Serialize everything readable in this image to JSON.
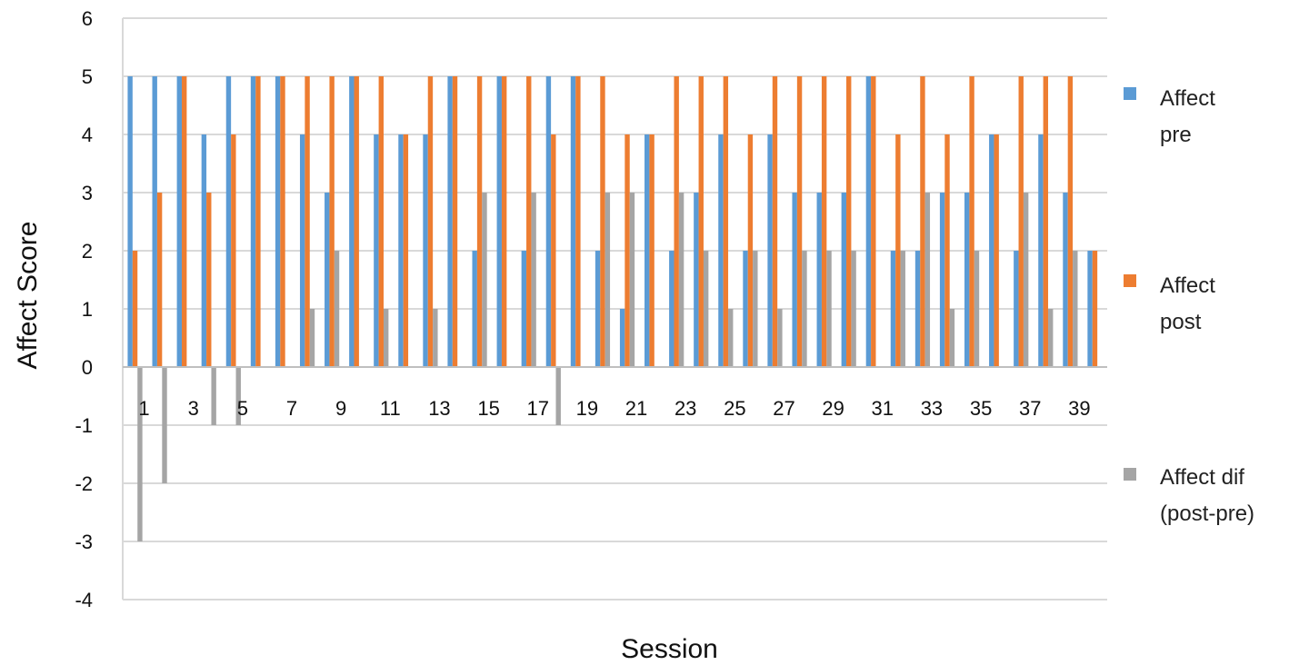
{
  "chart_data": {
    "type": "bar",
    "title": "",
    "xlabel": "Session",
    "ylabel": "Affect Score",
    "ylim": [
      -4,
      6
    ],
    "yticks": [
      6,
      5,
      4,
      3,
      2,
      1,
      0,
      -1,
      -2,
      -3,
      -4
    ],
    "grid": true,
    "legend_position": "right",
    "categories": [
      1,
      2,
      3,
      4,
      5,
      6,
      7,
      8,
      9,
      10,
      11,
      12,
      13,
      14,
      15,
      16,
      17,
      18,
      19,
      20,
      21,
      22,
      23,
      24,
      25,
      26,
      27,
      28,
      29,
      30,
      31,
      32,
      33,
      34,
      35,
      36,
      37,
      38,
      39,
      40
    ],
    "xtick_labels": [
      "1",
      "3",
      "5",
      "7",
      "9",
      "11",
      "13",
      "15",
      "17",
      "19",
      "21",
      "23",
      "25",
      "27",
      "29",
      "31",
      "33",
      "35",
      "37",
      "39"
    ],
    "series": [
      {
        "name": "Affect pre",
        "color": "#5B9BD5",
        "values": [
          5,
          5,
          5,
          4,
          5,
          5,
          5,
          4,
          3,
          5,
          4,
          4,
          4,
          5,
          2,
          5,
          2,
          5,
          5,
          2,
          1,
          4,
          2,
          3,
          4,
          2,
          4,
          3,
          3,
          3,
          5,
          2,
          2,
          3,
          3,
          4,
          2,
          4,
          3,
          2
        ]
      },
      {
        "name": "Affect post",
        "color": "#ED7D31",
        "values": [
          2,
          3,
          5,
          3,
          4,
          5,
          5,
          5,
          5,
          5,
          5,
          4,
          5,
          5,
          5,
          5,
          5,
          4,
          5,
          5,
          4,
          4,
          5,
          5,
          5,
          4,
          5,
          5,
          5,
          5,
          5,
          4,
          5,
          4,
          5,
          4,
          5,
          5,
          5,
          2
        ]
      },
      {
        "name": "Affect dif (post-pre)",
        "legend_lines": [
          "Affect dif",
          "(post-pre)"
        ],
        "color": "#A5A5A5",
        "values": [
          -3,
          -2,
          0,
          -1,
          -1,
          0,
          0,
          1,
          2,
          0,
          1,
          0,
          1,
          0,
          3,
          0,
          3,
          -1,
          0,
          3,
          3,
          0,
          3,
          2,
          1,
          2,
          1,
          2,
          2,
          2,
          0,
          2,
          3,
          1,
          2,
          0,
          3,
          1,
          2,
          0
        ]
      }
    ]
  }
}
